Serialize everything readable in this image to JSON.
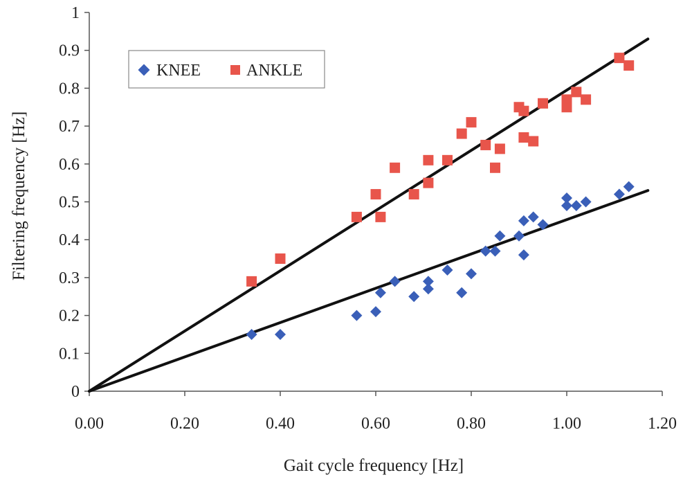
{
  "chart_data": {
    "type": "scatter",
    "title": "",
    "xlabel": "Gait cycle frequency [Hz]",
    "ylabel": "Filtering frequency [Hz]",
    "xlim": [
      0,
      1.2
    ],
    "ylim": [
      0,
      1
    ],
    "x_ticks": [
      0,
      0.2,
      0.4,
      0.6,
      0.8,
      1.0,
      1.2
    ],
    "x_tick_labels": [
      "0.00",
      "0.20",
      "0.40",
      "0.60",
      "0.80",
      "1.00",
      "1.20"
    ],
    "y_ticks": [
      0,
      0.1,
      0.2,
      0.3,
      0.4,
      0.5,
      0.6,
      0.7,
      0.8,
      0.9,
      1
    ],
    "y_tick_labels": [
      "0",
      "0.1",
      "0.2",
      "0.3",
      "0.4",
      "0.5",
      "0.6",
      "0.7",
      "0.8",
      "0.9",
      "1"
    ],
    "grid": false,
    "legend_position": "top-left",
    "series": [
      {
        "name": "KNEE",
        "marker": "diamond",
        "color": "#3a5fb8",
        "points": [
          [
            0.34,
            0.15
          ],
          [
            0.4,
            0.15
          ],
          [
            0.56,
            0.2
          ],
          [
            0.6,
            0.21
          ],
          [
            0.61,
            0.26
          ],
          [
            0.64,
            0.29
          ],
          [
            0.68,
            0.25
          ],
          [
            0.71,
            0.27
          ],
          [
            0.71,
            0.29
          ],
          [
            0.75,
            0.32
          ],
          [
            0.78,
            0.26
          ],
          [
            0.8,
            0.31
          ],
          [
            0.83,
            0.37
          ],
          [
            0.85,
            0.37
          ],
          [
            0.86,
            0.41
          ],
          [
            0.9,
            0.41
          ],
          [
            0.91,
            0.45
          ],
          [
            0.91,
            0.36
          ],
          [
            0.93,
            0.46
          ],
          [
            0.95,
            0.44
          ],
          [
            1.0,
            0.51
          ],
          [
            1.0,
            0.49
          ],
          [
            1.02,
            0.49
          ],
          [
            1.04,
            0.5
          ],
          [
            1.11,
            0.52
          ],
          [
            1.13,
            0.54
          ]
        ]
      },
      {
        "name": "ANKLE",
        "marker": "square",
        "color": "#e8554b",
        "points": [
          [
            0.34,
            0.29
          ],
          [
            0.4,
            0.35
          ],
          [
            0.56,
            0.46
          ],
          [
            0.6,
            0.52
          ],
          [
            0.61,
            0.46
          ],
          [
            0.64,
            0.59
          ],
          [
            0.68,
            0.52
          ],
          [
            0.71,
            0.55
          ],
          [
            0.71,
            0.61
          ],
          [
            0.75,
            0.61
          ],
          [
            0.78,
            0.68
          ],
          [
            0.8,
            0.71
          ],
          [
            0.83,
            0.65
          ],
          [
            0.85,
            0.59
          ],
          [
            0.86,
            0.64
          ],
          [
            0.9,
            0.75
          ],
          [
            0.91,
            0.74
          ],
          [
            0.91,
            0.67
          ],
          [
            0.93,
            0.66
          ],
          [
            0.95,
            0.76
          ],
          [
            1.0,
            0.75
          ],
          [
            1.0,
            0.77
          ],
          [
            1.02,
            0.79
          ],
          [
            1.04,
            0.77
          ],
          [
            1.11,
            0.88
          ],
          [
            1.13,
            0.86
          ]
        ]
      }
    ],
    "trendlines": [
      {
        "name": "ankle-trendline",
        "from": [
          0,
          0
        ],
        "to": [
          1.17,
          0.93
        ],
        "color": "#111111"
      },
      {
        "name": "knee-trendline",
        "from": [
          0,
          0
        ],
        "to": [
          1.17,
          0.53
        ],
        "color": "#111111"
      }
    ]
  }
}
